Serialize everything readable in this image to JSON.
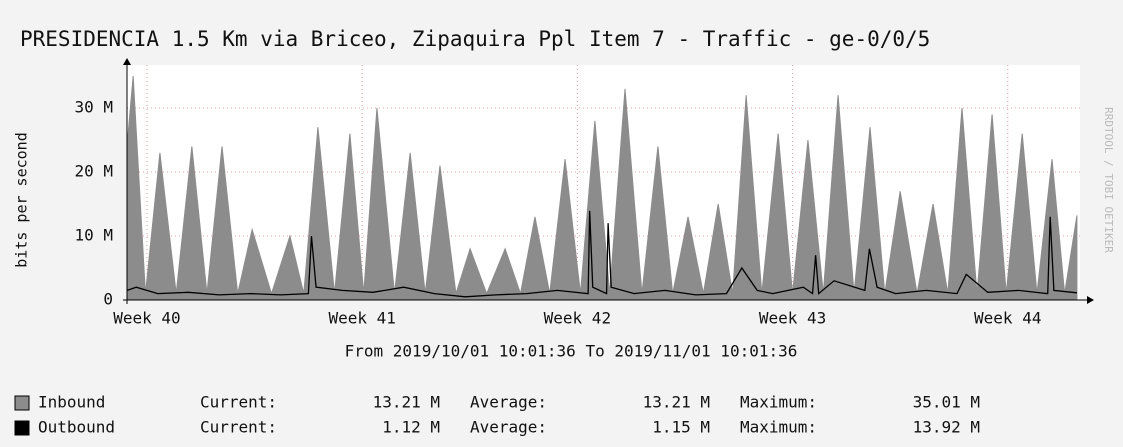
{
  "chart_data": {
    "type": "area",
    "title": "PRESIDENCIA 1.5 Km via Briceo, Zipaquira Ppl Item 7 - Traffic - ge-0/0/5",
    "subtitle": "From 2019/10/01 10:01:36 To 2019/11/01 10:01:36",
    "y_label": "bits per second",
    "watermark": "RRDTOOL / TOBI OETIKER",
    "xlim": [
      0,
      31
    ],
    "xticks": [
      {
        "value": 0.65,
        "label": "Week 40"
      },
      {
        "value": 7.65,
        "label": "Week 41"
      },
      {
        "value": 14.65,
        "label": "Week 42"
      },
      {
        "value": 21.65,
        "label": "Week 43"
      },
      {
        "value": 28.65,
        "label": "Week 44"
      }
    ],
    "ylim": [
      0,
      35000000
    ],
    "yticks": [
      0,
      {
        "value": 10000000,
        "label": "10 M"
      },
      {
        "value": 20000000,
        "label": "20 M"
      },
      {
        "value": 30000000,
        "label": "30 M"
      }
    ],
    "grid": true,
    "stat_labels": [
      "Current:",
      "Average:",
      "Maximum:"
    ],
    "series": [
      {
        "name": "Inbound",
        "color": "#8c8c8c",
        "style": "area",
        "stats": [
          "13.21 M",
          "13.21 M",
          "35.01 M"
        ],
        "x": [
          0,
          0.2,
          0.6,
          1.07,
          1.6,
          2.11,
          2.6,
          3.09,
          3.6,
          4.07,
          4.7,
          5.3,
          5.75,
          6.21,
          6.75,
          7.25,
          7.7,
          8.13,
          8.7,
          9.21,
          9.7,
          10.18,
          10.7,
          11.16,
          11.7,
          12.3,
          12.8,
          13.27,
          13.75,
          14.25,
          14.75,
          15.22,
          15.7,
          16.2,
          16.75,
          17.27,
          17.75,
          18.25,
          18.75,
          19.23,
          19.7,
          20.14,
          20.65,
          21.18,
          21.65,
          22.15,
          22.65,
          23.13,
          23.65,
          24.17,
          24.65,
          25.15,
          25.7,
          26.22,
          26.7,
          27.16,
          27.65,
          28.14,
          28.6,
          29.12,
          29.6,
          30.09,
          30.5,
          30.9
        ],
        "values": [
          24000000,
          35000000,
          1000000,
          23000000,
          1000000,
          24000000,
          1000000,
          24000000,
          1000000,
          11000000,
          1000000,
          10000000,
          1000000,
          27000000,
          1000000,
          26000000,
          1000000,
          30000000,
          1000000,
          23000000,
          1000000,
          21000000,
          1000000,
          8000000,
          1000000,
          8000000,
          1000000,
          13000000,
          1000000,
          22000000,
          1000000,
          28000000,
          1000000,
          33000000,
          1000000,
          24000000,
          1000000,
          13000000,
          1000000,
          15000000,
          1000000,
          32000000,
          1000000,
          26000000,
          1000000,
          25000000,
          1000000,
          32000000,
          1000000,
          27000000,
          1000000,
          17000000,
          1000000,
          15000000,
          1000000,
          30000000,
          1000000,
          29000000,
          1000000,
          26000000,
          1000000,
          22000000,
          1000000,
          13210000
        ]
      },
      {
        "name": "Outbound",
        "color": "#000000",
        "style": "line",
        "stats": [
          "1.12 M",
          "1.15 M",
          "13.92 M"
        ],
        "x": [
          0,
          0.3,
          1,
          2,
          3,
          4,
          5,
          5.9,
          6.0,
          6.15,
          7,
          8,
          9,
          10,
          11,
          12,
          13,
          14,
          15,
          15.05,
          15.15,
          15.6,
          15.65,
          15.75,
          16.5,
          17.5,
          18.5,
          19.5,
          20,
          20.5,
          21,
          22,
          22.3,
          22.4,
          22.5,
          23,
          24,
          24.15,
          24.4,
          25,
          26,
          27,
          27.3,
          28,
          29,
          29.95,
          30.03,
          30.15,
          30.9
        ],
        "values": [
          1500000,
          2000000,
          1000000,
          1200000,
          800000,
          1000000,
          800000,
          1000000,
          10000000,
          2000000,
          1500000,
          1200000,
          2000000,
          1000000,
          500000,
          800000,
          1000000,
          1500000,
          1000000,
          13920000,
          2000000,
          1000000,
          12000000,
          2000000,
          1000000,
          1500000,
          800000,
          1000000,
          5000000,
          1500000,
          1000000,
          2000000,
          1000000,
          7000000,
          1000000,
          3000000,
          1500000,
          8000000,
          2000000,
          1000000,
          1500000,
          1000000,
          4000000,
          1200000,
          1500000,
          1000000,
          13000000,
          1500000,
          1120000
        ]
      }
    ]
  }
}
